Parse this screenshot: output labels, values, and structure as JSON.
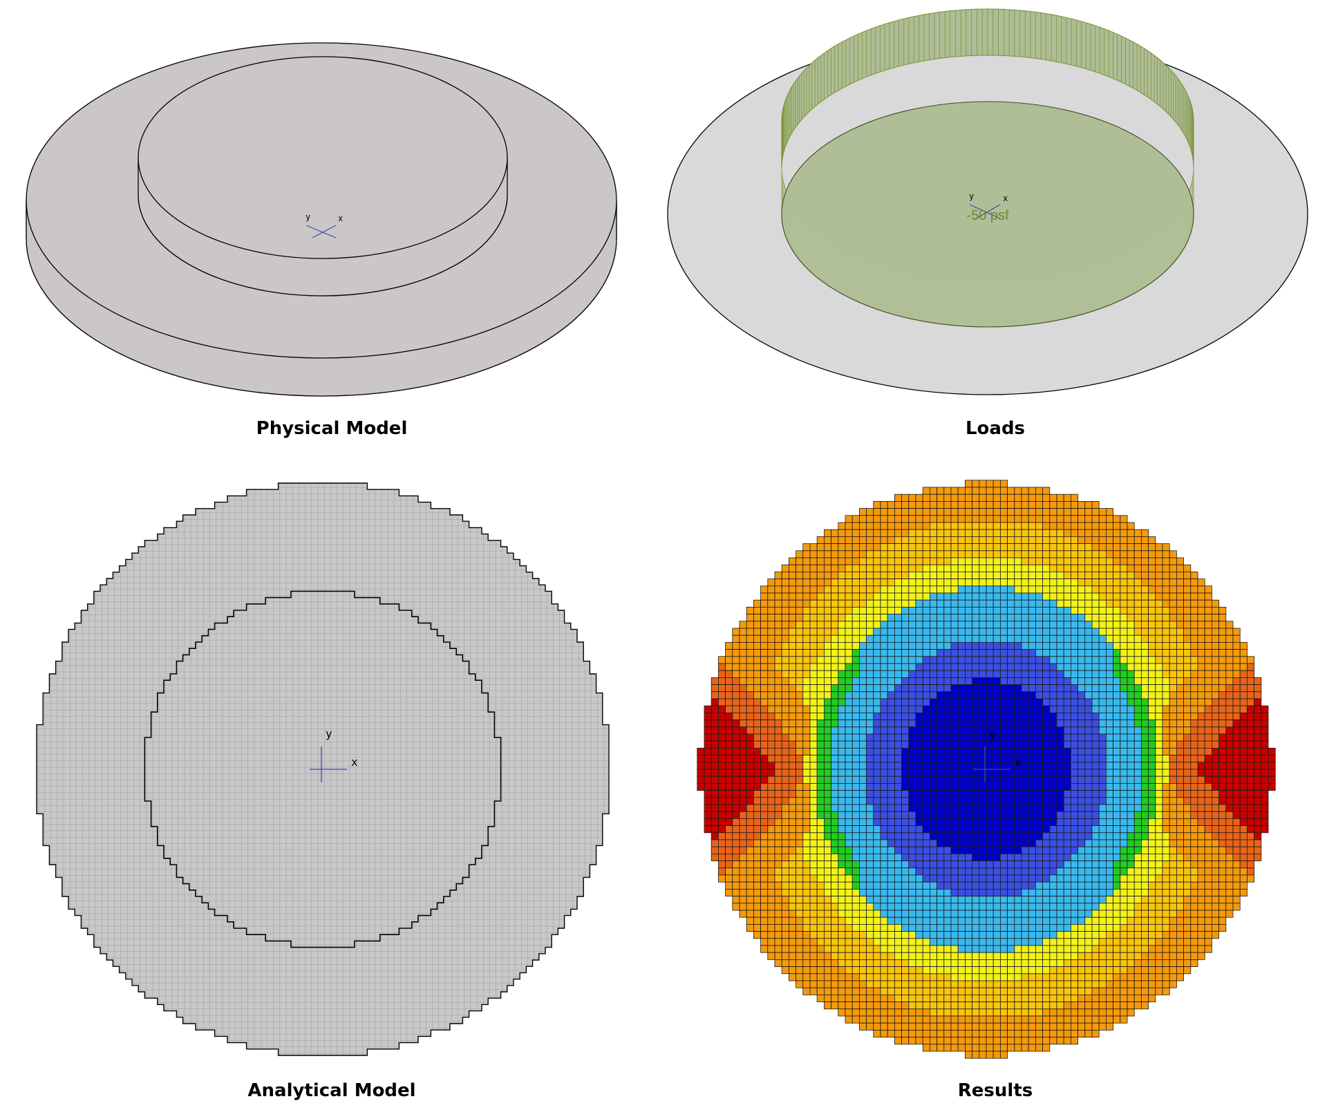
{
  "panels": {
    "physical": {
      "caption": "Physical Model",
      "axis_x": "x",
      "axis_y": "y"
    },
    "loads": {
      "caption": "Loads",
      "load_label": "-50 psf",
      "axis_x": "x",
      "axis_y": "y"
    },
    "analytical": {
      "caption": "Analytical Model",
      "axis_x": "x",
      "axis_y": "y"
    },
    "results": {
      "caption": "Results",
      "axis_x": "x",
      "axis_y": "y"
    }
  },
  "colors": {
    "slab_fill": "#cac7c6",
    "slab_fill_light": "#d9d9d9",
    "outline": "#000000",
    "load_fill": "#aebd95",
    "load_stroke": "#77902f",
    "load_text": "#6d8a2d",
    "axis": "#3a48b0",
    "mesh_fill": "#c8c8c8",
    "mesh_grid": "#8f8f96",
    "contour_bands": [
      "#0000c8",
      "#3b4fe2",
      "#39b9ee",
      "#22cc22",
      "#f2f21a",
      "#fac40c",
      "#f59a0a",
      "#ea6418",
      "#c80000"
    ]
  }
}
